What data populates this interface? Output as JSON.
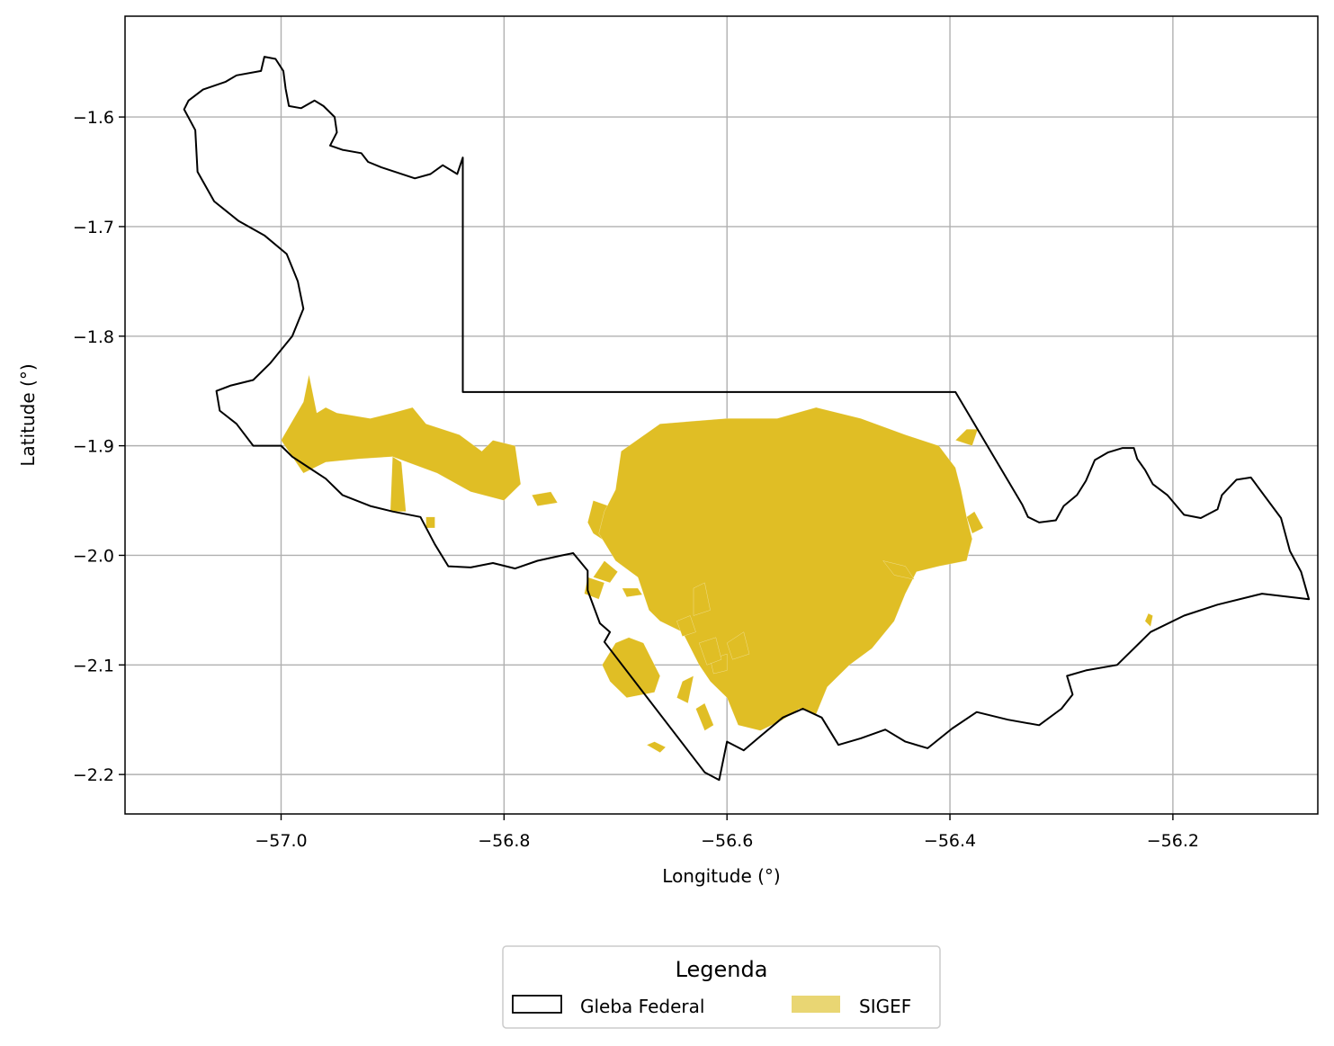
{
  "chart_data": {
    "type": "map",
    "xlabel": "Longitude (°)",
    "ylabel": "Latitude (°)",
    "xlim": [
      -57.14,
      -56.07
    ],
    "ylim": [
      -2.236,
      -1.508
    ],
    "xticks": [
      -57.0,
      -56.8,
      -56.6,
      -56.4,
      -56.2
    ],
    "yticks": [
      -1.6,
      -1.7,
      -1.8,
      -1.9,
      -2.0,
      -2.1,
      -2.2
    ],
    "xtick_labels": [
      "−57.0",
      "−56.8",
      "−56.6",
      "−56.4",
      "−56.2"
    ],
    "ytick_labels": [
      "−1.6",
      "−1.7",
      "−1.8",
      "−1.9",
      "−2.0",
      "−2.1",
      "−2.2"
    ],
    "grid": true,
    "legend": {
      "title": "Legenda",
      "placement": "bottom-center",
      "entries": [
        {
          "label": "Gleba Federal",
          "style": "outline",
          "color": "#000000"
        },
        {
          "label": "SIGEF",
          "style": "fill",
          "color": "#e9d673"
        }
      ]
    },
    "series": [
      {
        "name": "Gleba Federal",
        "kind": "boundary",
        "color": "#000000",
        "points": [
          [
            -57.083,
            -1.585
          ],
          [
            -57.07,
            -1.575
          ],
          [
            -57.05,
            -1.568
          ],
          [
            -57.04,
            -1.562
          ],
          [
            -57.018,
            -1.558
          ],
          [
            -57.015,
            -1.545
          ],
          [
            -57.005,
            -1.547
          ],
          [
            -56.998,
            -1.558
          ],
          [
            -56.996,
            -1.574
          ],
          [
            -56.993,
            -1.59
          ],
          [
            -56.982,
            -1.592
          ],
          [
            -56.97,
            -1.585
          ],
          [
            -56.962,
            -1.59
          ],
          [
            -56.952,
            -1.6
          ],
          [
            -56.95,
            -1.614
          ],
          [
            -56.956,
            -1.626
          ],
          [
            -56.945,
            -1.63
          ],
          [
            -56.928,
            -1.633
          ],
          [
            -56.922,
            -1.641
          ],
          [
            -56.91,
            -1.646
          ],
          [
            -56.895,
            -1.651
          ],
          [
            -56.88,
            -1.656
          ],
          [
            -56.866,
            -1.652
          ],
          [
            -56.855,
            -1.644
          ],
          [
            -56.842,
            -1.652
          ],
          [
            -56.837,
            -1.637
          ],
          [
            -56.837,
            -1.851
          ],
          [
            -56.395,
            -1.851
          ],
          [
            -56.335,
            -1.954
          ],
          [
            -56.33,
            -1.965
          ],
          [
            -56.32,
            -1.97
          ],
          [
            -56.305,
            -1.968
          ],
          [
            -56.298,
            -1.955
          ],
          [
            -56.286,
            -1.945
          ],
          [
            -56.278,
            -1.932
          ],
          [
            -56.27,
            -1.913
          ],
          [
            -56.258,
            -1.906
          ],
          [
            -56.245,
            -1.902
          ],
          [
            -56.235,
            -1.902
          ],
          [
            -56.232,
            -1.912
          ],
          [
            -56.225,
            -1.922
          ],
          [
            -56.218,
            -1.935
          ],
          [
            -56.205,
            -1.945
          ],
          [
            -56.19,
            -1.963
          ],
          [
            -56.175,
            -1.966
          ],
          [
            -56.16,
            -1.958
          ],
          [
            -56.156,
            -1.945
          ],
          [
            -56.143,
            -1.931
          ],
          [
            -56.13,
            -1.929
          ],
          [
            -56.103,
            -1.966
          ],
          [
            -56.095,
            -1.996
          ],
          [
            -56.085,
            -2.015
          ],
          [
            -56.078,
            -2.04
          ],
          [
            -56.12,
            -2.035
          ],
          [
            -56.16,
            -2.045
          ],
          [
            -56.19,
            -2.055
          ],
          [
            -56.22,
            -2.07
          ],
          [
            -56.25,
            -2.1
          ],
          [
            -56.278,
            -2.105
          ],
          [
            -56.295,
            -2.11
          ],
          [
            -56.29,
            -2.127
          ],
          [
            -56.3,
            -2.14
          ],
          [
            -56.32,
            -2.155
          ],
          [
            -56.348,
            -2.15
          ],
          [
            -56.376,
            -2.143
          ],
          [
            -56.398,
            -2.158
          ],
          [
            -56.42,
            -2.176
          ],
          [
            -56.44,
            -2.17
          ],
          [
            -56.458,
            -2.159
          ],
          [
            -56.48,
            -2.167
          ],
          [
            -56.5,
            -2.173
          ],
          [
            -56.515,
            -2.148
          ],
          [
            -56.532,
            -2.14
          ],
          [
            -56.55,
            -2.148
          ],
          [
            -56.57,
            -2.165
          ],
          [
            -56.585,
            -2.178
          ],
          [
            -56.6,
            -2.17
          ],
          [
            -56.607,
            -2.205
          ],
          [
            -56.62,
            -2.198
          ],
          [
            -56.71,
            -2.079
          ],
          [
            -56.705,
            -2.07
          ],
          [
            -56.714,
            -2.062
          ],
          [
            -56.725,
            -2.032
          ],
          [
            -56.725,
            -2.014
          ],
          [
            -56.738,
            -1.998
          ],
          [
            -56.748,
            -2.0
          ],
          [
            -56.77,
            -2.005
          ],
          [
            -56.79,
            -2.012
          ],
          [
            -56.81,
            -2.007
          ],
          [
            -56.83,
            -2.011
          ],
          [
            -56.85,
            -2.01
          ],
          [
            -56.862,
            -1.99
          ],
          [
            -56.875,
            -1.965
          ],
          [
            -56.9,
            -1.96
          ],
          [
            -56.92,
            -1.955
          ],
          [
            -56.945,
            -1.945
          ],
          [
            -56.96,
            -1.93
          ],
          [
            -56.975,
            -1.92
          ],
          [
            -56.99,
            -1.91
          ],
          [
            -57.0,
            -1.9
          ],
          [
            -57.025,
            -1.9
          ],
          [
            -57.04,
            -1.88
          ],
          [
            -57.055,
            -1.868
          ],
          [
            -57.058,
            -1.85
          ],
          [
            -57.045,
            -1.845
          ],
          [
            -57.025,
            -1.84
          ],
          [
            -57.01,
            -1.825
          ],
          [
            -56.99,
            -1.8
          ],
          [
            -56.98,
            -1.775
          ],
          [
            -56.985,
            -1.75
          ],
          [
            -56.995,
            -1.725
          ],
          [
            -57.015,
            -1.708
          ],
          [
            -57.038,
            -1.695
          ],
          [
            -57.06,
            -1.677
          ],
          [
            -57.075,
            -1.65
          ],
          [
            -57.077,
            -1.612
          ],
          [
            -57.087,
            -1.593
          ]
        ]
      },
      {
        "name": "SIGEF",
        "kind": "parcels",
        "color": "#e0be25",
        "polygons": [
          [
            [
              -57.0,
              -1.895
            ],
            [
              -56.98,
              -1.86
            ],
            [
              -56.975,
              -1.835
            ],
            [
              -56.968,
              -1.87
            ],
            [
              -56.96,
              -1.865
            ],
            [
              -56.95,
              -1.87
            ],
            [
              -56.92,
              -1.875
            ],
            [
              -56.9,
              -1.87
            ],
            [
              -56.882,
              -1.865
            ],
            [
              -56.87,
              -1.88
            ],
            [
              -56.84,
              -1.89
            ],
            [
              -56.82,
              -1.905
            ],
            [
              -56.81,
              -1.895
            ],
            [
              -56.79,
              -1.9
            ],
            [
              -56.785,
              -1.935
            ],
            [
              -56.8,
              -1.95
            ],
            [
              -56.83,
              -1.942
            ],
            [
              -56.86,
              -1.925
            ],
            [
              -56.9,
              -1.91
            ],
            [
              -56.93,
              -1.912
            ],
            [
              -56.96,
              -1.915
            ],
            [
              -56.98,
              -1.925
            ],
            [
              -56.99,
              -1.91
            ]
          ],
          [
            [
              -56.9,
              -1.91
            ],
            [
              -56.892,
              -1.915
            ],
            [
              -56.888,
              -1.96
            ],
            [
              -56.902,
              -1.96
            ]
          ],
          [
            [
              -56.87,
              -1.965
            ],
            [
              -56.862,
              -1.965
            ],
            [
              -56.862,
              -1.975
            ],
            [
              -56.87,
              -1.975
            ]
          ],
          [
            [
              -56.775,
              -1.945
            ],
            [
              -56.77,
              -1.955
            ],
            [
              -56.752,
              -1.952
            ],
            [
              -56.758,
              -1.942
            ]
          ],
          [
            [
              -56.72,
              -1.95
            ],
            [
              -56.692,
              -1.96
            ],
            [
              -56.69,
              -1.985
            ],
            [
              -56.705,
              -1.99
            ],
            [
              -56.72,
              -1.98
            ],
            [
              -56.725,
              -1.97
            ]
          ],
          [
            [
              -56.695,
              -1.905
            ],
            [
              -56.66,
              -1.88
            ],
            [
              -56.6,
              -1.875
            ],
            [
              -56.555,
              -1.875
            ],
            [
              -56.52,
              -1.865
            ],
            [
              -56.48,
              -1.875
            ],
            [
              -56.44,
              -1.89
            ],
            [
              -56.41,
              -1.9
            ],
            [
              -56.395,
              -1.92
            ],
            [
              -56.39,
              -1.94
            ],
            [
              -56.385,
              -1.965
            ],
            [
              -56.38,
              -1.985
            ],
            [
              -56.385,
              -2.005
            ],
            [
              -56.41,
              -2.01
            ],
            [
              -56.43,
              -2.015
            ],
            [
              -56.44,
              -2.035
            ],
            [
              -56.45,
              -2.06
            ],
            [
              -56.47,
              -2.085
            ],
            [
              -56.49,
              -2.1
            ],
            [
              -56.51,
              -2.12
            ],
            [
              -56.52,
              -2.145
            ],
            [
              -56.535,
              -2.14
            ],
            [
              -56.55,
              -2.15
            ],
            [
              -56.57,
              -2.16
            ],
            [
              -56.59,
              -2.155
            ],
            [
              -56.6,
              -2.13
            ],
            [
              -56.615,
              -2.115
            ],
            [
              -56.625,
              -2.1
            ],
            [
              -56.64,
              -2.07
            ],
            [
              -56.66,
              -2.06
            ],
            [
              -56.67,
              -2.05
            ],
            [
              -56.68,
              -2.02
            ],
            [
              -56.7,
              -2.005
            ],
            [
              -56.715,
              -1.98
            ],
            [
              -56.71,
              -1.96
            ],
            [
              -56.7,
              -1.94
            ]
          ],
          [
            [
              -56.71,
              -2.005
            ],
            [
              -56.72,
              -2.02
            ],
            [
              -56.705,
              -2.025
            ],
            [
              -56.698,
              -2.015
            ]
          ],
          [
            [
              -56.7,
              -2.08
            ],
            [
              -56.688,
              -2.075
            ],
            [
              -56.675,
              -2.08
            ],
            [
              -56.66,
              -2.11
            ],
            [
              -56.665,
              -2.125
            ],
            [
              -56.69,
              -2.13
            ],
            [
              -56.705,
              -2.115
            ],
            [
              -56.712,
              -2.1
            ]
          ],
          [
            [
              -56.63,
              -2.11
            ],
            [
              -56.64,
              -2.115
            ],
            [
              -56.645,
              -2.13
            ],
            [
              -56.635,
              -2.135
            ]
          ],
          [
            [
              -56.62,
              -2.135
            ],
            [
              -56.612,
              -2.155
            ],
            [
              -56.62,
              -2.16
            ],
            [
              -56.628,
              -2.14
            ]
          ],
          [
            [
              -56.68,
              -2.03
            ],
            [
              -56.676,
              -2.036
            ],
            [
              -56.69,
              -2.038
            ],
            [
              -56.694,
              -2.03
            ]
          ],
          [
            [
              -56.63,
              -2.03
            ],
            [
              -56.62,
              -2.025
            ],
            [
              -56.615,
              -2.05
            ],
            [
              -56.63,
              -2.055
            ]
          ],
          [
            [
              -56.615,
              -2.095
            ],
            [
              -56.6,
              -2.09
            ],
            [
              -56.6,
              -2.105
            ],
            [
              -56.612,
              -2.108
            ]
          ],
          [
            [
              -56.46,
              -2.005
            ],
            [
              -56.44,
              -2.01
            ],
            [
              -56.432,
              -2.022
            ],
            [
              -56.45,
              -2.018
            ]
          ],
          [
            [
              -56.395,
              -1.895
            ],
            [
              -56.385,
              -1.885
            ],
            [
              -56.375,
              -1.885
            ],
            [
              -56.38,
              -1.9
            ]
          ],
          [
            [
              -56.385,
              -1.965
            ],
            [
              -56.38,
              -1.98
            ],
            [
              -56.37,
              -1.975
            ],
            [
              -56.378,
              -1.96
            ]
          ],
          [
            [
              -56.222,
              -2.053
            ],
            [
              -56.218,
              -2.055
            ],
            [
              -56.22,
              -2.065
            ],
            [
              -56.225,
              -2.06
            ]
          ],
          [
            [
              -56.665,
              -2.17
            ],
            [
              -56.655,
              -2.175
            ],
            [
              -56.66,
              -2.18
            ],
            [
              -56.672,
              -2.173
            ]
          ],
          [
            [
              -56.725,
              -2.02
            ],
            [
              -56.71,
              -2.025
            ],
            [
              -56.715,
              -2.04
            ],
            [
              -56.728,
              -2.035
            ]
          ],
          [
            [
              -56.625,
              -2.08
            ],
            [
              -56.61,
              -2.075
            ],
            [
              -56.605,
              -2.095
            ],
            [
              -56.618,
              -2.1
            ]
          ],
          [
            [
              -56.6,
              -2.08
            ],
            [
              -56.585,
              -2.07
            ],
            [
              -56.58,
              -2.09
            ],
            [
              -56.595,
              -2.095
            ]
          ],
          [
            [
              -56.645,
              -2.06
            ],
            [
              -56.633,
              -2.055
            ],
            [
              -56.628,
              -2.07
            ],
            [
              -56.64,
              -2.074
            ]
          ]
        ]
      }
    ]
  }
}
